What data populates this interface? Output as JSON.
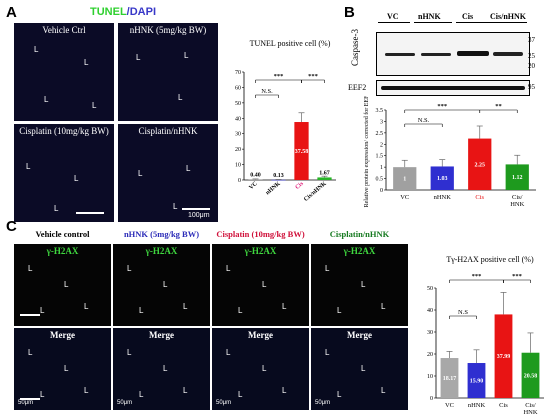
{
  "panels": {
    "a": "A",
    "b": "B",
    "c": "C"
  },
  "panel_a": {
    "title_tunel": "TUNEL",
    "title_sep": "/",
    "title_dapi": "DAPI",
    "images": [
      {
        "caption": "Vehicle Ctrl"
      },
      {
        "caption": "nHNK (5mg/kg BW)"
      },
      {
        "caption": "Cisplatin (10mg/kg BW)"
      },
      {
        "caption": "Cisplatin/nHNK"
      }
    ],
    "lumen_mark": "L",
    "scale_label": "100μm"
  },
  "panel_b": {
    "lanes": [
      "VC",
      "nHNK",
      "Cis",
      "Cis/nHNK"
    ],
    "protein1": "Caspase-3",
    "protein2": "EEF2",
    "mw_marks": [
      "37",
      "25",
      "20",
      "95"
    ]
  },
  "panel_c": {
    "columns": [
      {
        "title": "Vehicle control",
        "color": "#000000"
      },
      {
        "title": "nHNK (5mg/kg BW)",
        "color": "#2b2bb8"
      },
      {
        "title": "Cisplatin (10mg/kg BW)",
        "color": "#d0103a"
      },
      {
        "title": "Cisplatin/nHNK",
        "color": "#157a1f"
      }
    ],
    "stain_label": "γ-H2AX",
    "merge_label": "Merge",
    "lumen_mark": "L",
    "scale_label": "50μm"
  },
  "chart_data": [
    {
      "type": "bar",
      "title": "TUNEL positive cell (%)",
      "categories": [
        "VC",
        "nHNK",
        "Cis",
        "Cis/nHNK"
      ],
      "values": [
        0.4,
        0.13,
        37.58,
        1.67
      ],
      "value_labels": [
        "0.40",
        "0.13",
        "37.58",
        "1.67"
      ],
      "errors": [
        0.3,
        0.2,
        6,
        0.8
      ],
      "colors": [
        "#9a9a9a",
        "#2f2fd0",
        "#e81414",
        "#27b427"
      ],
      "ylim": [
        0,
        70
      ],
      "yticks": [
        0,
        10,
        20,
        30,
        40,
        50,
        60,
        70
      ],
      "significance": [
        "N.S.",
        "***",
        "***"
      ],
      "category_colors": [
        "#000000",
        "#000000",
        "#e0207a",
        "#000000"
      ]
    },
    {
      "type": "bar",
      "title": "",
      "ylabel": "Relative protein expression/ corrected for EEF2",
      "categories": [
        "VC",
        "nHNK",
        "Cis",
        "Cis/ HNK"
      ],
      "values": [
        1,
        1.03,
        2.25,
        1.12
      ],
      "value_labels": [
        "1",
        "1.03",
        "2.25",
        "1.12"
      ],
      "errors": [
        0.3,
        0.3,
        0.55,
        0.4
      ],
      "colors": [
        "#a0a0a0",
        "#2f2fd0",
        "#e81414",
        "#1e9a1e"
      ],
      "ylim": [
        0,
        3.5
      ],
      "yticks": [
        "0",
        "0.5",
        "1",
        "1.5",
        "2",
        "2.5",
        "3",
        "3.5"
      ],
      "significance": [
        "N.S.",
        "***",
        "**"
      ],
      "category_colors": [
        "#000000",
        "#000000",
        "#e81414",
        "#000000"
      ]
    },
    {
      "type": "bar",
      "title": "Tγ-H2AX positive cell (%)",
      "categories": [
        "VC",
        "nHNK",
        "Cis",
        "Cis/ HNK"
      ],
      "values": [
        18.17,
        15.9,
        37.99,
        20.58
      ],
      "value_labels": [
        "18.17",
        "15.90",
        "37.99",
        "20.58"
      ],
      "errors": [
        3,
        6,
        10,
        9
      ],
      "colors": [
        "#a8a8a8",
        "#2f2fd0",
        "#e81414",
        "#1e9a1e"
      ],
      "ylim": [
        0,
        50
      ],
      "yticks": [
        0,
        10,
        20,
        30,
        40,
        50
      ],
      "significance": [
        "N.S",
        "***",
        "***"
      ],
      "category_colors": [
        "#000000",
        "#000000",
        "#000000",
        "#000000"
      ]
    }
  ]
}
